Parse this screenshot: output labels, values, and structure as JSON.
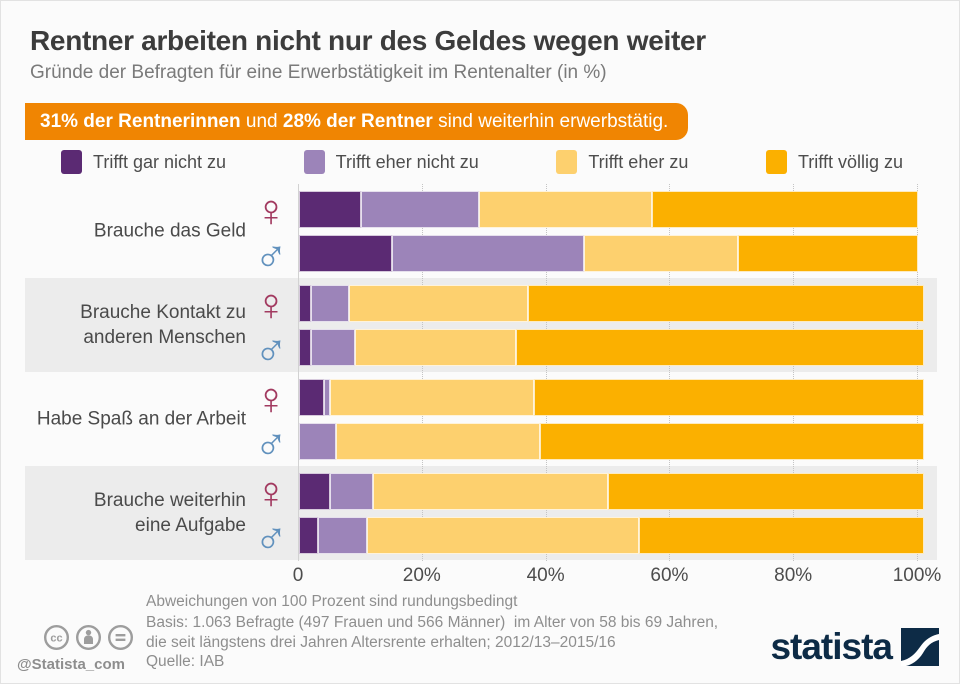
{
  "header": {
    "title": "Rentner arbeiten nicht nur des Geldes wegen weiter",
    "subtitle": "Gründe der Befragten für eine Erwerbstätigkeit im Rentenalter (in %)",
    "badge": {
      "bold1": "31% der Rentnerinnen",
      "mid": " und ",
      "bold2": "28% der Rentner",
      "rest": " sind weiterhin erwerbstätig.",
      "color": "#f08502"
    }
  },
  "chart_data": {
    "type": "bar",
    "orientation": "horizontal",
    "stacked": true,
    "unit": "percent",
    "x_axis": {
      "min": 0,
      "max": 100,
      "ticks": [
        "0",
        "20%",
        "40%",
        "60%",
        "80%",
        "100%"
      ],
      "grid": "dotted"
    },
    "answer_options": [
      "Trifft gar nicht zu",
      "Trifft eher nicht zu",
      "Trifft eher zu",
      "Trifft völlig zu"
    ],
    "colors": [
      "#5b2a73",
      "#9c84b9",
      "#fdd06e",
      "#fbb000"
    ],
    "genders": [
      {
        "key": "female",
        "symbol": "♀",
        "color": "#a23a60"
      },
      {
        "key": "male",
        "symbol": "♂",
        "color": "#6191bd"
      }
    ],
    "categories": [
      {
        "label": "Brauche das Geld",
        "striped": false,
        "values": {
          "female": [
            10,
            19,
            28,
            43
          ],
          "male": [
            15,
            31,
            25,
            29
          ]
        }
      },
      {
        "label": "Brauche  Kontakt zu\nanderen Menschen",
        "striped": true,
        "values": {
          "female": [
            2,
            6,
            29,
            64
          ],
          "male": [
            2,
            7,
            26,
            66
          ]
        }
      },
      {
        "label": "Habe Spaß an der Arbeit",
        "striped": false,
        "values": {
          "female": [
            4,
            1,
            33,
            63
          ],
          "male": [
            0,
            6,
            33,
            62
          ]
        }
      },
      {
        "label": "Brauche weiterhin\neine Aufgabe",
        "striped": true,
        "values": {
          "female": [
            5,
            7,
            38,
            51
          ],
          "male": [
            3,
            8,
            44,
            46
          ]
        }
      }
    ]
  },
  "footer": {
    "notes": [
      "Abweichungen von 100 Prozent sind rundungsbedingt",
      "Basis: 1.063 Befragte (497 Frauen und 566 Männer)  im Alter von 58 bis 69 Jahren,",
      "die seit längstens drei Jahren Altersrente erhalten; 2012/13–2015/16"
    ],
    "source": "Quelle: IAB",
    "handle": "@Statista_com",
    "logo_text": "statista",
    "license_icons": [
      "cc-icon",
      "attribution-person-icon",
      "no-derivatives-icon"
    ]
  }
}
